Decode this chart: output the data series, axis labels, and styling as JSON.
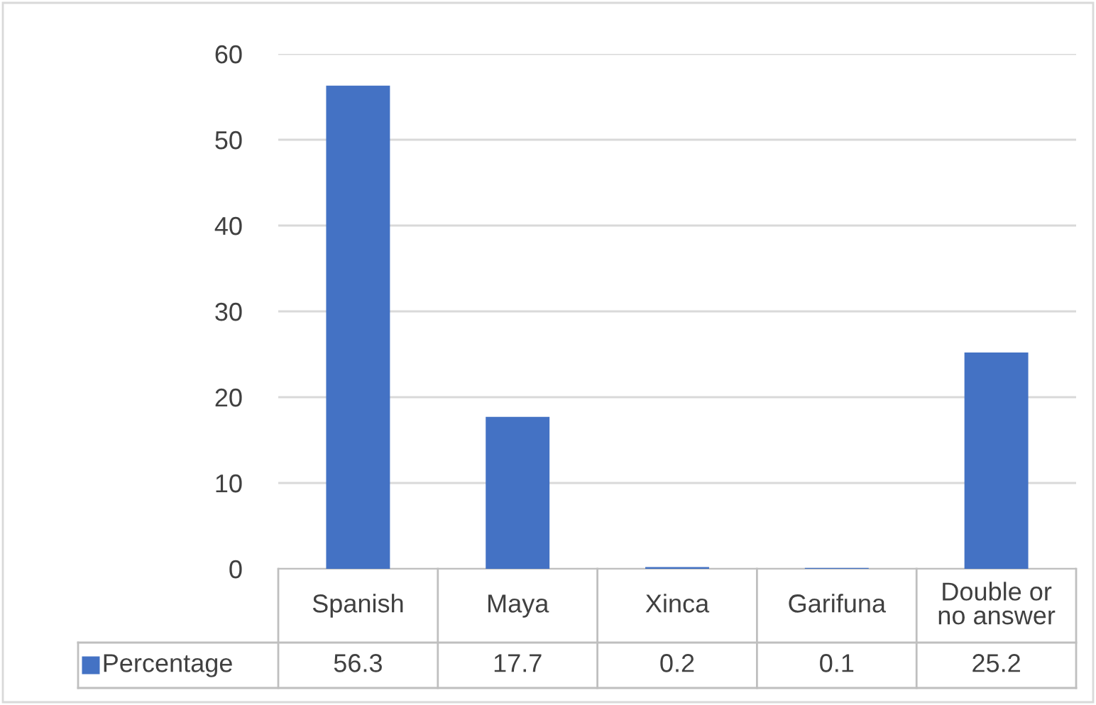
{
  "chart_data": {
    "type": "bar",
    "categories": [
      "Spanish",
      "Maya",
      "Xinca",
      "Garifuna",
      "Double or\nno answer"
    ],
    "series": [
      {
        "name": "Percentage",
        "color": "#4472c4",
        "values": [
          56.3,
          17.7,
          0.2,
          0.1,
          25.2
        ]
      }
    ],
    "ylim": [
      0,
      60
    ],
    "yticks": [
      0,
      10,
      20,
      30,
      40,
      50,
      60
    ],
    "grid": "y",
    "data_labels": true,
    "legend": "bottom"
  }
}
